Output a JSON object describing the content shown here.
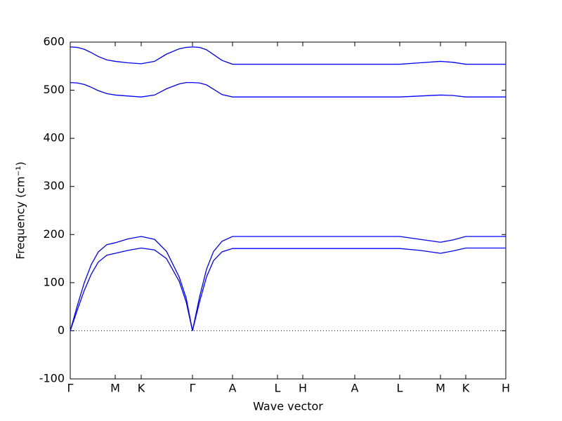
{
  "chart_data": {
    "type": "line",
    "xlabel": "Wave vector",
    "ylabel": "Frequency (cm⁻¹)",
    "x": [
      0,
      0.1,
      0.2,
      0.3,
      0.4,
      0.52,
      0.64,
      0.82,
      1.01,
      1.2,
      1.37,
      1.55,
      1.65,
      1.74,
      1.84,
      1.94,
      2.04,
      2.16,
      2.31,
      2.95,
      3.31,
      4.05,
      4.69,
      4.98,
      5.27,
      5.45,
      5.63,
      6.2
    ],
    "series": [
      {
        "color": "#0000ff",
        "values": [
          0,
          52,
          100,
          138,
          164,
          179,
          183,
          191,
          196,
          190,
          165,
          112,
          68,
          0,
          70,
          128,
          165,
          186,
          196,
          196,
          196,
          196,
          196,
          190,
          184,
          189,
          196,
          196
        ]
      },
      {
        "color": "#0000ff",
        "values": [
          0,
          43,
          84,
          118,
          143,
          157,
          161,
          167,
          172,
          168,
          150,
          103,
          60,
          0,
          60,
          112,
          146,
          164,
          171,
          171,
          171,
          171,
          171,
          167,
          161,
          166,
          172,
          172
        ]
      },
      {
        "color": "#0000ff",
        "values": [
          590,
          589,
          585,
          578,
          570,
          563,
          560,
          557,
          555,
          560,
          575,
          586,
          589,
          590,
          589,
          584,
          574,
          562,
          554,
          554,
          554,
          554,
          554,
          557,
          560,
          558,
          554,
          554
        ]
      },
      {
        "color": "#0000ff",
        "values": [
          516,
          515,
          512,
          506,
          499,
          493,
          490,
          488,
          486,
          490,
          503,
          513,
          516,
          516,
          515,
          511,
          502,
          491,
          486,
          486,
          486,
          486,
          486,
          488,
          490,
          489,
          486,
          486
        ]
      }
    ],
    "xlim": [
      0,
      6.2
    ],
    "xticks": [
      {
        "value": 0,
        "label": "Γ"
      },
      {
        "value": 0.64,
        "label": "M"
      },
      {
        "value": 1.01,
        "label": "K"
      },
      {
        "value": 1.74,
        "label": "Γ"
      },
      {
        "value": 2.31,
        "label": "A"
      },
      {
        "value": 2.95,
        "label": "L"
      },
      {
        "value": 3.31,
        "label": "H"
      },
      {
        "value": 4.05,
        "label": "A"
      },
      {
        "value": 4.69,
        "label": "L"
      },
      {
        "value": 5.27,
        "label": "M"
      },
      {
        "value": 5.63,
        "label": "K"
      },
      {
        "value": 6.2,
        "label": "H"
      }
    ],
    "ylim": [
      -100,
      600
    ],
    "yticks": [
      -100,
      0,
      100,
      200,
      300,
      400,
      500,
      600
    ],
    "hlines": [
      0
    ],
    "grid": false
  }
}
